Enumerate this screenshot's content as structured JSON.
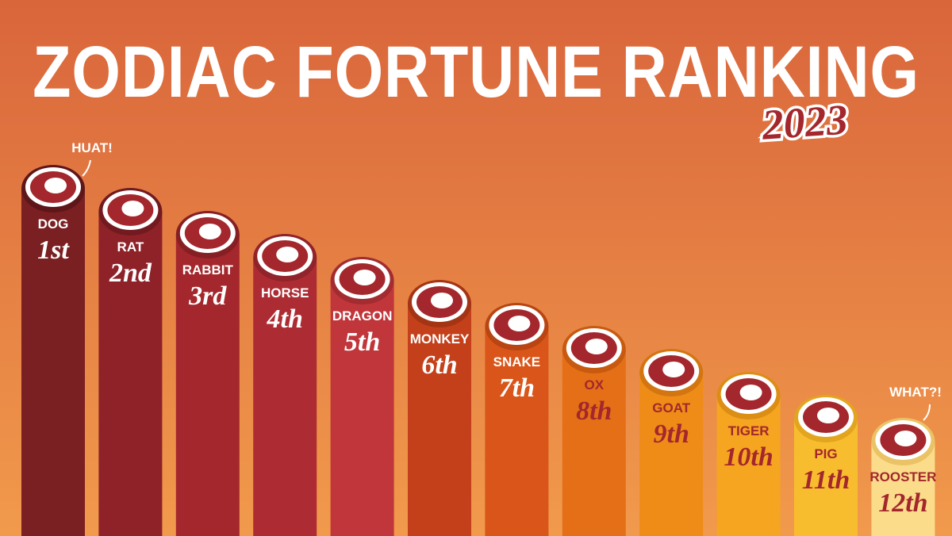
{
  "header": {
    "title": "ZODIAC FORTUNE RANKING",
    "year": "2023"
  },
  "annotations": {
    "first": "HUAT!",
    "last": "WHAT?!"
  },
  "ranking": [
    {
      "name": "DOG",
      "rank": "1st"
    },
    {
      "name": "RAT",
      "rank": "2nd"
    },
    {
      "name": "RABBIT",
      "rank": "3rd"
    },
    {
      "name": "HORSE",
      "rank": "4th"
    },
    {
      "name": "DRAGON",
      "rank": "5th"
    },
    {
      "name": "MONKEY",
      "rank": "6th"
    },
    {
      "name": "SNAKE",
      "rank": "7th"
    },
    {
      "name": "OX",
      "rank": "8th"
    },
    {
      "name": "GOAT",
      "rank": "9th"
    },
    {
      "name": "TIGER",
      "rank": "10th"
    },
    {
      "name": "PIG",
      "rank": "11th"
    },
    {
      "name": "ROOSTER",
      "rank": "12th"
    }
  ]
}
